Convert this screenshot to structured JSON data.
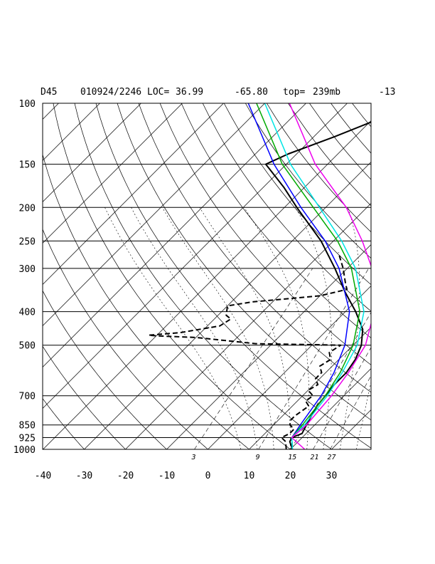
{
  "header": {
    "station": "D45",
    "datetime": "010924/2246",
    "loc_label": "LOC=",
    "lat": "36.99",
    "lon": "-65.80",
    "top_label": "top=",
    "top_value": "239mb",
    "extra": "-13"
  },
  "chart_data": {
    "type": "line",
    "title": "",
    "xlabel": "",
    "ylabel": "",
    "x_axis": {
      "label_values": [
        -40,
        -30,
        -20,
        -10,
        0,
        10,
        20,
        30
      ],
      "xlim": [
        -40,
        40
      ],
      "units": "degC"
    },
    "y_axis": {
      "scale": "log",
      "pressure_levels": [
        1000,
        925,
        850,
        700,
        500,
        400,
        300,
        250,
        200,
        150,
        100
      ],
      "ylim": [
        1000,
        100
      ],
      "units": "mb"
    },
    "mixing_ratio_labels": [
      "3",
      "9",
      "15",
      "21",
      "27"
    ],
    "grid": true,
    "series": [
      {
        "kind": "temperature",
        "color": "#000000",
        "dashed": false,
        "width": 2,
        "points": [
          [
            1000,
            20.5
          ],
          [
            950,
            18
          ],
          [
            925,
            17.5
          ],
          [
            900,
            19
          ],
          [
            850,
            18
          ],
          [
            800,
            17
          ],
          [
            750,
            16
          ],
          [
            700,
            15.5
          ],
          [
            650,
            15
          ],
          [
            600,
            15
          ],
          [
            550,
            14
          ],
          [
            500,
            12
          ],
          [
            450,
            8.5
          ],
          [
            400,
            2.5
          ],
          [
            350,
            -5
          ],
          [
            300,
            -13
          ],
          [
            250,
            -23
          ],
          [
            200,
            -37
          ],
          [
            175,
            -45
          ],
          [
            150,
            -55
          ],
          [
            140,
            -52
          ],
          [
            125,
            -45
          ],
          [
            110,
            -38
          ],
          [
            100,
            -33
          ]
        ]
      },
      {
        "kind": "dewpoint",
        "color": "#000000",
        "dashed": true,
        "width": 2,
        "points": [
          [
            1000,
            19
          ],
          [
            950,
            17
          ],
          [
            925,
            15
          ],
          [
            900,
            16
          ],
          [
            875,
            16
          ],
          [
            850,
            14
          ],
          [
            825,
            13
          ],
          [
            800,
            13
          ],
          [
            750,
            14
          ],
          [
            725,
            12
          ],
          [
            700,
            12.5
          ],
          [
            675,
            10
          ],
          [
            650,
            11
          ],
          [
            625,
            9
          ],
          [
            600,
            9
          ],
          [
            575,
            7
          ],
          [
            550,
            8
          ],
          [
            525,
            6
          ],
          [
            500,
            7
          ],
          [
            495,
            -14
          ],
          [
            475,
            -30
          ],
          [
            470,
            -40
          ],
          [
            468,
            -42
          ],
          [
            460,
            -35
          ],
          [
            440,
            -27
          ],
          [
            420,
            -26
          ],
          [
            410,
            -28
          ],
          [
            385,
            -30
          ],
          [
            375,
            -25
          ],
          [
            360,
            -10
          ],
          [
            345,
            -5
          ],
          [
            330,
            -7
          ],
          [
            300,
            -11
          ],
          [
            270,
            -16
          ]
        ]
      },
      {
        "kind": "parcel",
        "color": "#0000ff",
        "dashed": false,
        "width": 1.5,
        "points": [
          [
            1000,
            20.5
          ],
          [
            925,
            17.5
          ],
          [
            850,
            16.5
          ],
          [
            700,
            14.5
          ],
          [
            600,
            12
          ],
          [
            500,
            8
          ],
          [
            400,
            1
          ],
          [
            300,
            -12
          ],
          [
            250,
            -22
          ],
          [
            200,
            -36
          ],
          [
            150,
            -53
          ],
          [
            100,
            -74
          ]
        ]
      },
      {
        "kind": "parcel",
        "color": "#00aa00",
        "dashed": false,
        "width": 1.5,
        "points": [
          [
            1000,
            20.5
          ],
          [
            925,
            17.5
          ],
          [
            850,
            17
          ],
          [
            700,
            15.5
          ],
          [
            600,
            13.5
          ],
          [
            500,
            10
          ],
          [
            400,
            3.5
          ],
          [
            300,
            -9
          ],
          [
            250,
            -19
          ],
          [
            200,
            -33
          ],
          [
            150,
            -51
          ],
          [
            100,
            -72
          ]
        ]
      },
      {
        "kind": "parcel",
        "color": "#00e5e5",
        "dashed": false,
        "width": 1.5,
        "points": [
          [
            1000,
            20.5
          ],
          [
            925,
            17.5
          ],
          [
            850,
            17.5
          ],
          [
            700,
            16
          ],
          [
            600,
            14
          ],
          [
            500,
            11
          ],
          [
            400,
            4.5
          ],
          [
            300,
            -8
          ],
          [
            250,
            -18
          ],
          [
            200,
            -31.5
          ],
          [
            150,
            -49
          ],
          [
            100,
            -70
          ]
        ]
      },
      {
        "kind": "parcel",
        "color": "#ee00ee",
        "dashed": false,
        "width": 1.5,
        "points": [
          [
            1000,
            23.5
          ],
          [
            925,
            17.5
          ],
          [
            850,
            18
          ],
          [
            700,
            17
          ],
          [
            600,
            15.5
          ],
          [
            500,
            13
          ],
          [
            400,
            7
          ],
          [
            300,
            -4
          ],
          [
            250,
            -13
          ],
          [
            200,
            -25
          ],
          [
            150,
            -43
          ],
          [
            100,
            -64
          ]
        ]
      }
    ]
  }
}
